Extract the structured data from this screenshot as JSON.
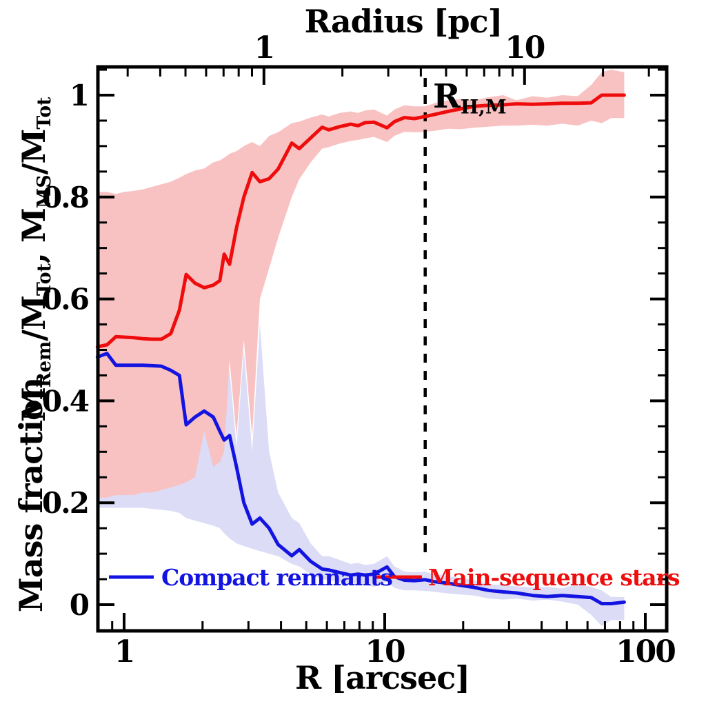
{
  "figure": {
    "top_axis": {
      "title": "Radius [pc]",
      "major_ticks": [
        {
          "pc": 1,
          "label": "1"
        },
        {
          "pc": 10,
          "label": "10"
        }
      ],
      "minor_ticks_pc": [
        0.3,
        0.4,
        0.5,
        0.6,
        0.7,
        0.8,
        0.9,
        2,
        3,
        4,
        5,
        6,
        7,
        8,
        9,
        20,
        30
      ],
      "arcsec_per_pc": 3.44
    },
    "bottom_axis": {
      "title": "R [arcsec]",
      "major_ticks": [
        {
          "v": 1,
          "label": "1"
        },
        {
          "v": 10,
          "label": "10"
        },
        {
          "v": 100,
          "label": "100"
        }
      ],
      "minor_ticks": [
        0.9,
        2,
        3,
        4,
        5,
        6,
        7,
        8,
        9,
        20,
        30,
        40,
        50,
        60,
        70,
        80,
        90
      ]
    },
    "y_axis": {
      "title": "Mass fraction",
      "math_title_segments": [
        {
          "t": "M"
        },
        {
          "t": "Rem",
          "sub": true
        },
        {
          "t": "/M"
        },
        {
          "t": "Tot",
          "sub": true
        },
        {
          "t": ",  M"
        },
        {
          "t": "MS",
          "sub": true
        },
        {
          "t": "/M"
        },
        {
          "t": "Tot",
          "sub": true
        }
      ],
      "major_ticks": [
        {
          "v": 0,
          "label": "0"
        },
        {
          "v": 0.2,
          "label": "0.2"
        },
        {
          "v": 0.4,
          "label": "0.4"
        },
        {
          "v": 0.6,
          "label": "0.6"
        },
        {
          "v": 0.8,
          "label": "0.8"
        },
        {
          "v": 1,
          "label": "1"
        }
      ],
      "minor_ticks": [
        0.05,
        0.1,
        0.15,
        0.25,
        0.3,
        0.35,
        0.45,
        0.5,
        0.55,
        0.65,
        0.7,
        0.75,
        0.85,
        0.9,
        0.95,
        1.05
      ]
    },
    "annotation": {
      "base": "R",
      "sub": "H,M",
      "x_arcsec": 14.3,
      "style": "vertical-dashed-line",
      "color": "#000000"
    }
  },
  "chart_data": {
    "type": "line",
    "title": "",
    "xlabel": "R [arcsec]",
    "xlabel_top": "Radius [pc]",
    "ylabel": "Mass fraction  M_Rem/M_Tot, M_MS/M_Tot",
    "x_scale": "log",
    "x_range_arcsec": [
      0.79,
      120
    ],
    "y_range": [
      -0.051,
      1.056
    ],
    "grid": false,
    "legend_position": "inside-bottom",
    "x_arcsec": [
      0.79,
      0.86,
      0.93,
      1.0,
      1.09,
      1.18,
      1.28,
      1.39,
      1.51,
      1.63,
      1.73,
      1.87,
      2.03,
      2.2,
      2.33,
      2.42,
      2.54,
      2.7,
      2.88,
      3.1,
      3.32,
      3.6,
      3.9,
      4.4,
      4.7,
      5.2,
      5.75,
      6.1,
      6.7,
      7.4,
      7.9,
      8.4,
      9.1,
      10.2,
      10.9,
      11.9,
      13.0,
      14.3,
      15.5,
      17.5,
      19.5,
      22.0,
      25.0,
      28.5,
      32.0,
      37.0,
      42.0,
      48.0,
      55.0,
      62.0,
      68.0,
      74.0,
      83.0
    ],
    "series": [
      {
        "name": "Main-sequence stars",
        "color": "#ee0c0c",
        "band_color": "#f9c2c2",
        "values": [
          0.506,
          0.51,
          0.526,
          0.525,
          0.524,
          0.522,
          0.521,
          0.521,
          0.532,
          0.578,
          0.648,
          0.631,
          0.622,
          0.627,
          0.636,
          0.688,
          0.668,
          0.74,
          0.8,
          0.848,
          0.83,
          0.836,
          0.855,
          0.906,
          0.895,
          0.916,
          0.937,
          0.932,
          0.938,
          0.943,
          0.94,
          0.946,
          0.947,
          0.936,
          0.948,
          0.956,
          0.954,
          0.958,
          0.962,
          0.968,
          0.973,
          0.978,
          0.98,
          0.981,
          0.983,
          0.982,
          0.983,
          0.984,
          0.984,
          0.985,
          1.0,
          1.0,
          1.0
        ],
        "band_upper": [
          0.81,
          0.81,
          0.806,
          0.81,
          0.812,
          0.815,
          0.82,
          0.825,
          0.83,
          0.838,
          0.845,
          0.852,
          0.856,
          0.868,
          0.872,
          0.877,
          0.885,
          0.89,
          0.9,
          0.908,
          0.9,
          0.92,
          0.927,
          0.945,
          0.948,
          0.956,
          0.962,
          0.958,
          0.965,
          0.968,
          0.965,
          0.97,
          0.972,
          0.96,
          0.972,
          0.98,
          0.978,
          0.978,
          0.984,
          0.99,
          0.992,
          0.99,
          0.996,
          1.0,
          0.99,
          0.998,
          0.995,
          1.0,
          0.998,
          1.02,
          1.045,
          1.05,
          1.045
        ],
        "band_lower": [
          0.21,
          0.21,
          0.215,
          0.215,
          0.215,
          0.22,
          0.22,
          0.225,
          0.23,
          0.235,
          0.24,
          0.25,
          0.34,
          0.27,
          0.28,
          0.3,
          0.48,
          0.33,
          0.52,
          0.33,
          0.6,
          0.66,
          0.72,
          0.8,
          0.835,
          0.868,
          0.895,
          0.898,
          0.905,
          0.91,
          0.912,
          0.915,
          0.918,
          0.908,
          0.92,
          0.928,
          0.927,
          0.928,
          0.93,
          0.934,
          0.933,
          0.936,
          0.938,
          0.94,
          0.94,
          0.942,
          0.94,
          0.944,
          0.94,
          0.95,
          0.945,
          0.955,
          0.955
        ]
      },
      {
        "name": "Compact remnants",
        "color": "#1414e0",
        "band_color": "#dcdcf7",
        "values": [
          0.486,
          0.493,
          0.47,
          0.47,
          0.47,
          0.47,
          0.469,
          0.468,
          0.46,
          0.45,
          0.353,
          0.368,
          0.38,
          0.368,
          0.34,
          0.323,
          0.332,
          0.27,
          0.2,
          0.158,
          0.17,
          0.15,
          0.118,
          0.096,
          0.108,
          0.085,
          0.07,
          0.068,
          0.063,
          0.058,
          0.06,
          0.058,
          0.06,
          0.074,
          0.055,
          0.048,
          0.047,
          0.049,
          0.045,
          0.042,
          0.038,
          0.034,
          0.028,
          0.025,
          0.023,
          0.018,
          0.016,
          0.018,
          0.016,
          0.014,
          0.002,
          0.002,
          0.005
        ],
        "band_upper": [
          0.79,
          0.79,
          0.785,
          0.79,
          0.79,
          0.79,
          0.78,
          0.775,
          0.77,
          0.76,
          0.62,
          0.55,
          0.34,
          0.33,
          0.45,
          0.42,
          0.46,
          0.31,
          0.5,
          0.3,
          0.55,
          0.3,
          0.22,
          0.17,
          0.16,
          0.12,
          0.095,
          0.095,
          0.088,
          0.08,
          0.082,
          0.078,
          0.08,
          0.095,
          0.075,
          0.065,
          0.064,
          0.065,
          0.06,
          0.056,
          0.052,
          0.048,
          0.04,
          0.038,
          0.036,
          0.034,
          0.035,
          0.032,
          0.04,
          0.035,
          0.028,
          0.015,
          0.015
        ],
        "band_lower": [
          0.19,
          0.19,
          0.19,
          0.19,
          0.19,
          0.19,
          0.188,
          0.186,
          0.184,
          0.18,
          0.17,
          0.165,
          0.16,
          0.155,
          0.15,
          0.14,
          0.13,
          0.12,
          0.115,
          0.11,
          0.105,
          0.1,
          0.095,
          0.08,
          0.075,
          0.06,
          0.05,
          0.048,
          0.045,
          0.042,
          0.04,
          0.038,
          0.035,
          0.045,
          0.033,
          0.028,
          0.028,
          0.027,
          0.025,
          0.022,
          0.02,
          0.018,
          0.012,
          0.01,
          0.012,
          0.008,
          0.01,
          0.006,
          0.0,
          -0.02,
          -0.042,
          -0.03,
          -0.03
        ]
      }
    ]
  }
}
